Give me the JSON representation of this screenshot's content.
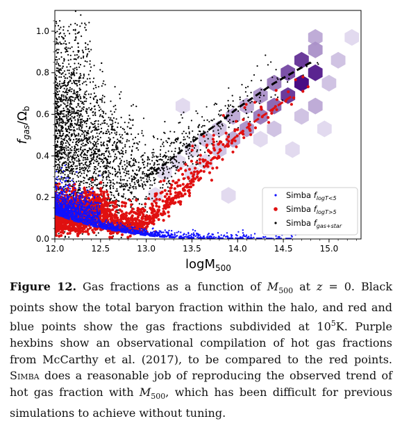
{
  "chart_data": {
    "type": "scatter",
    "xlabel": "logM",
    "xlabel_sub": "500",
    "ylabel": "f",
    "ylabel_sub": "gas",
    "ylabel_tail": "/Ω",
    "ylabel_tail_sub": "b",
    "xlim": [
      12.0,
      15.35
    ],
    "ylim": [
      0.0,
      1.1
    ],
    "xticks": [
      "12.0",
      "12.5",
      "13.0",
      "13.5",
      "14.0",
      "14.5",
      "15.0"
    ],
    "yticks": [
      "0.0",
      "0.2",
      "0.4",
      "0.6",
      "0.8",
      "1.0"
    ],
    "grid": false,
    "legend_position": "lower-right",
    "legend": [
      {
        "text": "Simba ",
        "sub": "f",
        "subsub": "logT<5",
        "color": "#1010ff",
        "marker": "point"
      },
      {
        "text": "Simba ",
        "sub": "f",
        "subsub": "logT>5",
        "color": "#e01010",
        "marker": "dot"
      },
      {
        "text": "Simba ",
        "sub": "f",
        "subsub": "gas+star",
        "color": "#000000",
        "marker": "point"
      }
    ],
    "series": [
      {
        "name": "f_logT<5",
        "color": "#1010ff",
        "trend_x": [
          12.0,
          12.2,
          12.4,
          12.6,
          12.8,
          13.0,
          13.2,
          13.4,
          13.6,
          13.8,
          14.0,
          14.2,
          14.4,
          14.6
        ],
        "trend_y": [
          0.12,
          0.09,
          0.065,
          0.045,
          0.03,
          0.018,
          0.01,
          0.006,
          0.004,
          0.003,
          0.002,
          0.002,
          0.001,
          0.001
        ]
      },
      {
        "name": "f_logT>5",
        "color": "#e01010",
        "trend_x": [
          12.8,
          13.0,
          13.2,
          13.4,
          13.6,
          13.8,
          14.0,
          14.2,
          14.4,
          14.6
        ],
        "trend_y": [
          0.06,
          0.09,
          0.15,
          0.24,
          0.33,
          0.42,
          0.5,
          0.57,
          0.63,
          0.69
        ]
      },
      {
        "name": "f_gas+star",
        "color": "#000000",
        "trend_x": [
          13.0,
          13.2,
          13.4,
          13.6,
          13.8,
          14.0,
          14.2,
          14.4,
          14.6,
          14.8
        ],
        "trend_y": [
          0.3,
          0.36,
          0.43,
          0.5,
          0.56,
          0.63,
          0.69,
          0.75,
          0.8,
          0.85
        ]
      }
    ],
    "hexbins_note": "",
    "hexbins": [
      {
        "x": 14.85,
        "y": 0.97,
        "n": 3
      },
      {
        "x": 14.7,
        "y": 0.86,
        "n": 8
      },
      {
        "x": 14.85,
        "y": 0.8,
        "n": 9
      },
      {
        "x": 14.7,
        "y": 0.75,
        "n": 10
      },
      {
        "x": 14.55,
        "y": 0.8,
        "n": 7
      },
      {
        "x": 14.55,
        "y": 0.69,
        "n": 8
      },
      {
        "x": 14.4,
        "y": 0.75,
        "n": 5
      },
      {
        "x": 14.4,
        "y": 0.64,
        "n": 6
      },
      {
        "x": 14.25,
        "y": 0.69,
        "n": 4
      },
      {
        "x": 14.25,
        "y": 0.59,
        "n": 5
      },
      {
        "x": 14.1,
        "y": 0.64,
        "n": 3
      },
      {
        "x": 14.1,
        "y": 0.53,
        "n": 4
      },
      {
        "x": 13.95,
        "y": 0.59,
        "n": 3
      },
      {
        "x": 13.95,
        "y": 0.48,
        "n": 3
      },
      {
        "x": 13.8,
        "y": 0.53,
        "n": 2
      },
      {
        "x": 13.8,
        "y": 0.43,
        "n": 2
      },
      {
        "x": 13.65,
        "y": 0.48,
        "n": 2
      },
      {
        "x": 13.65,
        "y": 0.37,
        "n": 1
      },
      {
        "x": 13.5,
        "y": 0.43,
        "n": 1
      },
      {
        "x": 13.5,
        "y": 0.32,
        "n": 1
      },
      {
        "x": 13.35,
        "y": 0.37,
        "n": 1
      },
      {
        "x": 13.2,
        "y": 0.32,
        "n": 1
      },
      {
        "x": 15.25,
        "y": 0.97,
        "n": 1
      },
      {
        "x": 15.1,
        "y": 0.86,
        "n": 2
      },
      {
        "x": 15.0,
        "y": 0.75,
        "n": 2
      },
      {
        "x": 14.85,
        "y": 0.64,
        "n": 3
      },
      {
        "x": 14.7,
        "y": 0.59,
        "n": 2
      },
      {
        "x": 14.85,
        "y": 0.91,
        "n": 4
      },
      {
        "x": 14.4,
        "y": 0.53,
        "n": 2
      },
      {
        "x": 14.25,
        "y": 0.48,
        "n": 1
      },
      {
        "x": 13.4,
        "y": 0.64,
        "n": 1
      },
      {
        "x": 13.9,
        "y": 0.21,
        "n": 1
      },
      {
        "x": 13.1,
        "y": 0.21,
        "n": 1
      },
      {
        "x": 14.95,
        "y": 0.53,
        "n": 1
      },
      {
        "x": 14.6,
        "y": 0.43,
        "n": 1
      }
    ]
  },
  "caption": {
    "label": "Figure 12.",
    "t1": " Gas fractions as a function of ",
    "m": "M",
    "m_sub": "500",
    "t2": " at ",
    "z": "z",
    "t3": " = 0. Black points show the total baryon fraction within the halo, and red and blue points show the gas fractions subdivided at 10",
    "exp": "5",
    "t4": "K. Purple hexbins show an observational compilation of hot gas fractions from McCarthy et al. (2017), to be compared to the red points. ",
    "simba": "Simba",
    "t5": " does a reasonable job of reproducing the observed trend of hot gas fraction with ",
    "m2": "M",
    "m2_sub": "500",
    "t6": ", which has been difficult for previous simulations to achieve without tuning."
  }
}
